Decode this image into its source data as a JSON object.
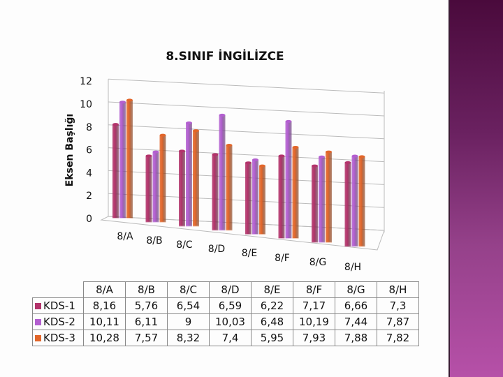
{
  "chart_data": {
    "type": "bar",
    "title": "8.SINIF İNGİLİZCE",
    "xlabel": "",
    "ylabel": "Eksen Başlığı",
    "ylim": [
      0,
      12
    ],
    "yticks": [
      "0",
      "2",
      "4",
      "6",
      "8",
      "10",
      "12"
    ],
    "categories": [
      "8/A",
      "8/B",
      "8/C",
      "8/D",
      "8/E",
      "8/F",
      "8/G",
      "8/H"
    ],
    "series": [
      {
        "name": "KDS-1",
        "color": "#b3336b",
        "values": [
          8.16,
          5.76,
          6.54,
          6.59,
          6.22,
          7.17,
          6.66,
          7.3
        ],
        "labels": [
          "8,16",
          "5,76",
          "6,54",
          "6,59",
          "6,22",
          "7,17",
          "6,66",
          "7,3"
        ]
      },
      {
        "name": "KDS-2",
        "color": "#b35fd0",
        "values": [
          10.11,
          6.11,
          9,
          10.03,
          6.48,
          10.19,
          7.44,
          7.87
        ],
        "labels": [
          "10,11",
          "6,11",
          "9",
          "10,03",
          "6,48",
          "10,19",
          "7,44",
          "7,87"
        ]
      },
      {
        "name": "KDS-3",
        "color": "#e2662a",
        "values": [
          10.28,
          7.57,
          8.32,
          7.4,
          5.95,
          7.93,
          7.88,
          7.82
        ],
        "labels": [
          "10,28",
          "7,57",
          "8,32",
          "7,4",
          "5,95",
          "7,93",
          "7,88",
          "7,82"
        ]
      }
    ],
    "grid": true,
    "legend": "data-table-below"
  }
}
